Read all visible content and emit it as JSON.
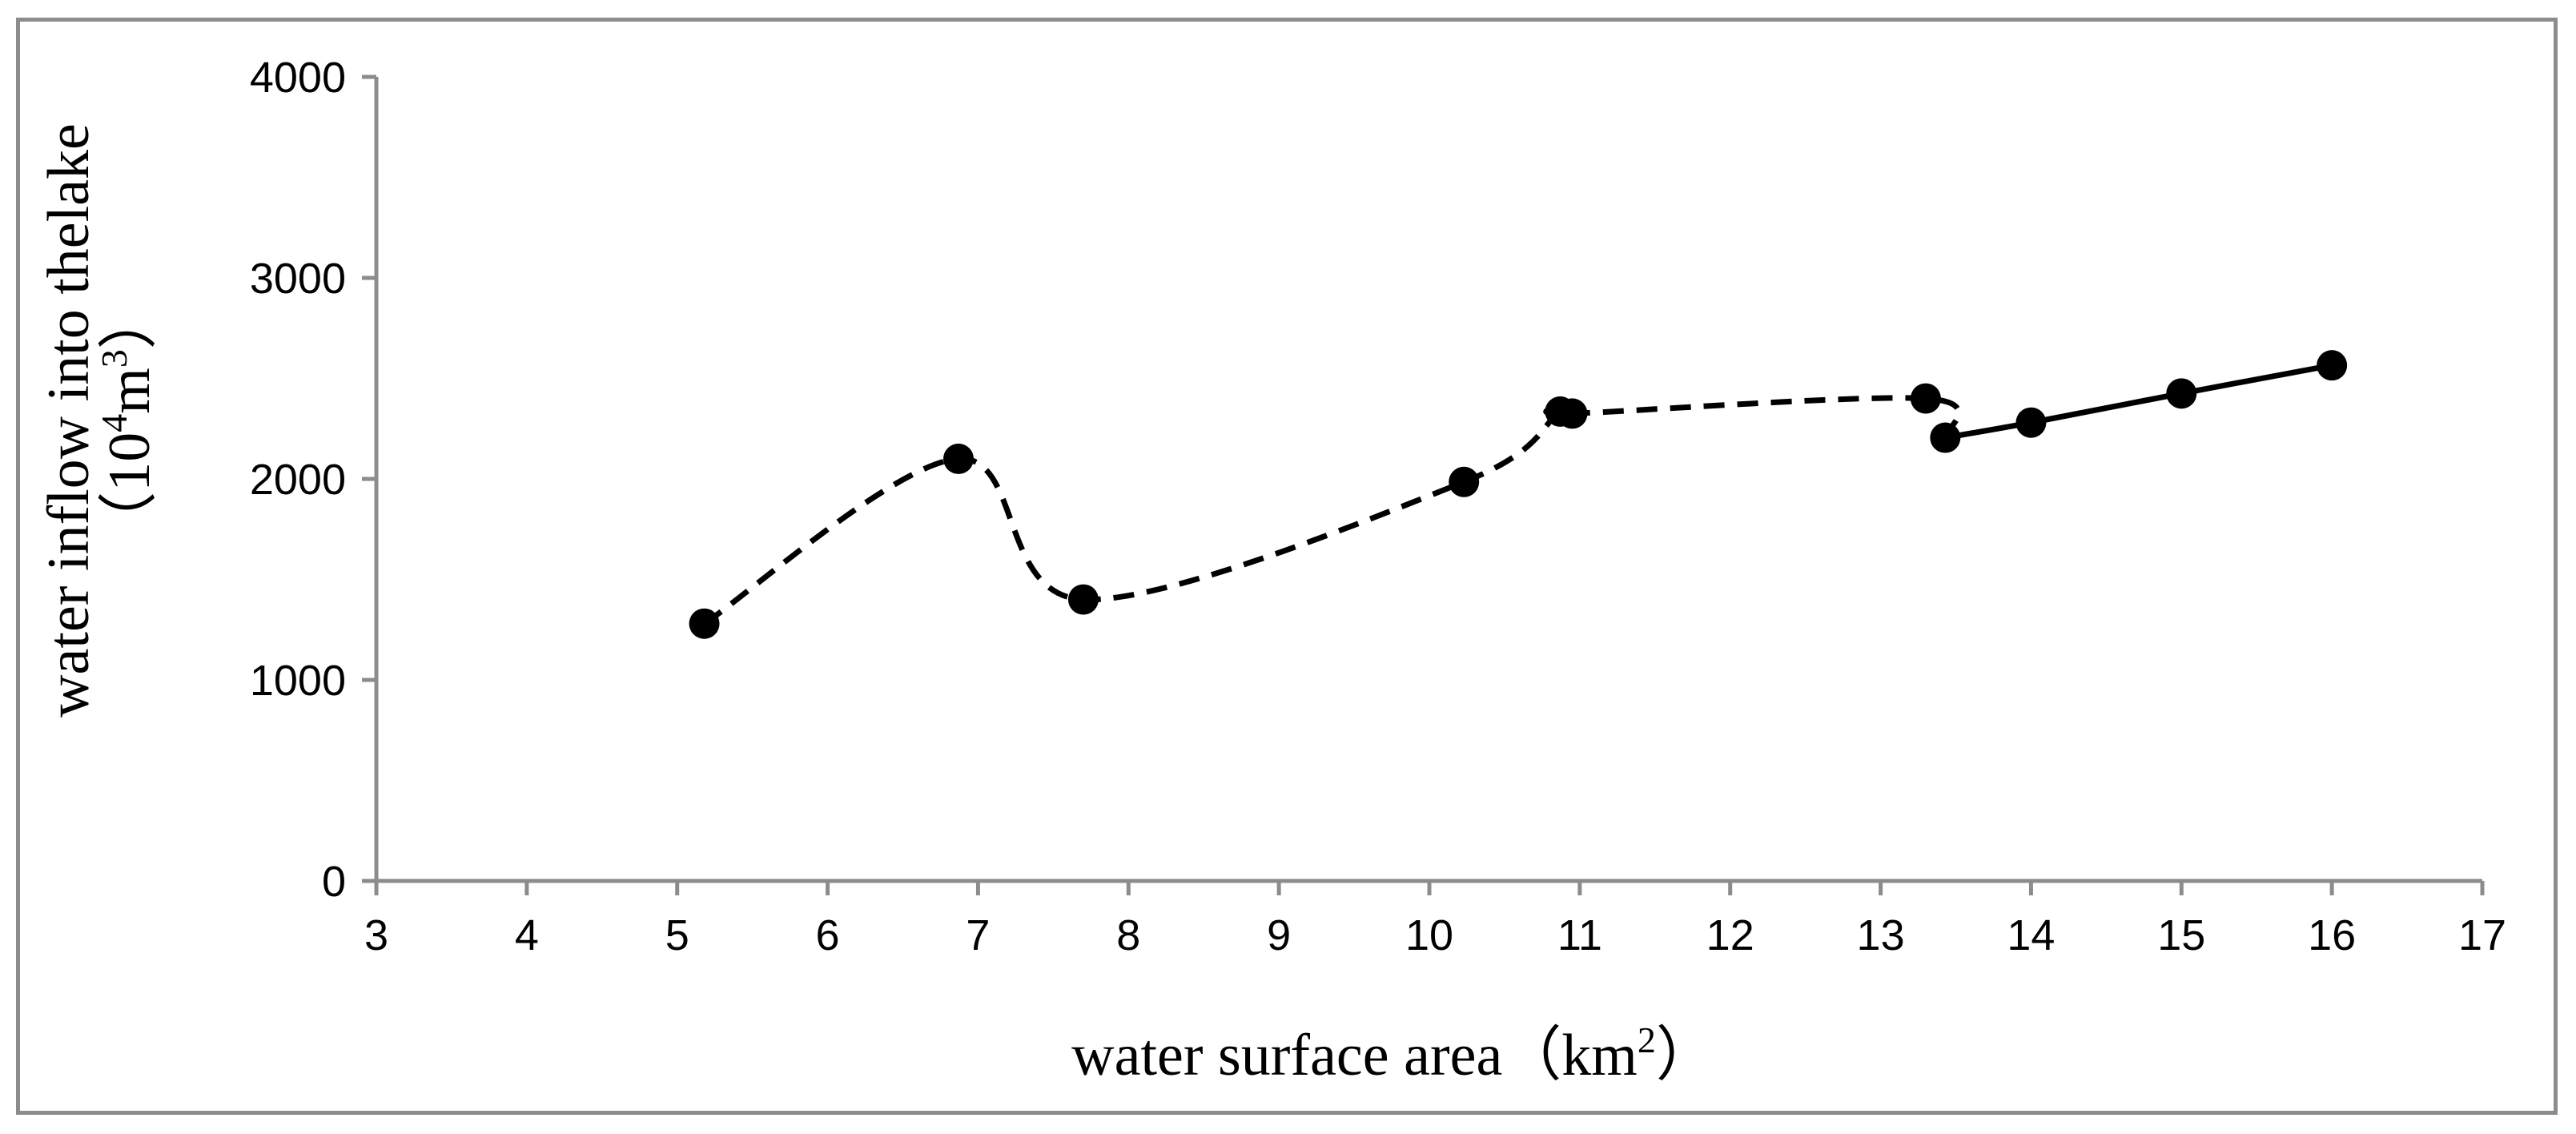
{
  "chart_data": {
    "type": "line",
    "title": "",
    "xlabel_parts": [
      "water surface area（km",
      "2",
      "）"
    ],
    "ylabel_line1": "water inflow into thelake",
    "ylabel_line2_parts": [
      "（10",
      "4",
      "m",
      "3",
      "）"
    ],
    "xlim": [
      3,
      17
    ],
    "ylim": [
      0,
      4000
    ],
    "x_ticks": [
      3,
      4,
      5,
      6,
      7,
      8,
      9,
      10,
      11,
      12,
      13,
      14,
      15,
      16,
      17
    ],
    "y_ticks": [
      0,
      1000,
      2000,
      3000,
      4000
    ],
    "grid": false,
    "legend": "none",
    "series": [
      {
        "name": "dashed segment",
        "style": "dashed",
        "color": "#000000",
        "points": [
          {
            "x": 5.18,
            "y": 1280
          },
          {
            "x": 6.87,
            "y": 2100
          },
          {
            "x": 7.7,
            "y": 1400
          },
          {
            "x": 10.23,
            "y": 1985
          },
          {
            "x": 10.87,
            "y": 2335
          },
          {
            "x": 10.95,
            "y": 2325
          },
          {
            "x": 13.3,
            "y": 2400
          },
          {
            "x": 13.43,
            "y": 2205
          }
        ]
      },
      {
        "name": "solid segment",
        "style": "solid",
        "color": "#000000",
        "points": [
          {
            "x": 13.43,
            "y": 2205
          },
          {
            "x": 14.0,
            "y": 2280
          },
          {
            "x": 15.0,
            "y": 2425
          },
          {
            "x": 16.0,
            "y": 2565
          }
        ]
      }
    ],
    "markers": [
      {
        "x": 5.18,
        "y": 1280
      },
      {
        "x": 6.87,
        "y": 2100
      },
      {
        "x": 7.7,
        "y": 1400
      },
      {
        "x": 10.23,
        "y": 1985
      },
      {
        "x": 10.87,
        "y": 2335
      },
      {
        "x": 10.95,
        "y": 2325
      },
      {
        "x": 13.3,
        "y": 2400
      },
      {
        "x": 13.43,
        "y": 2205
      },
      {
        "x": 14.0,
        "y": 2280
      },
      {
        "x": 15.0,
        "y": 2425
      },
      {
        "x": 16.0,
        "y": 2565
      }
    ]
  }
}
